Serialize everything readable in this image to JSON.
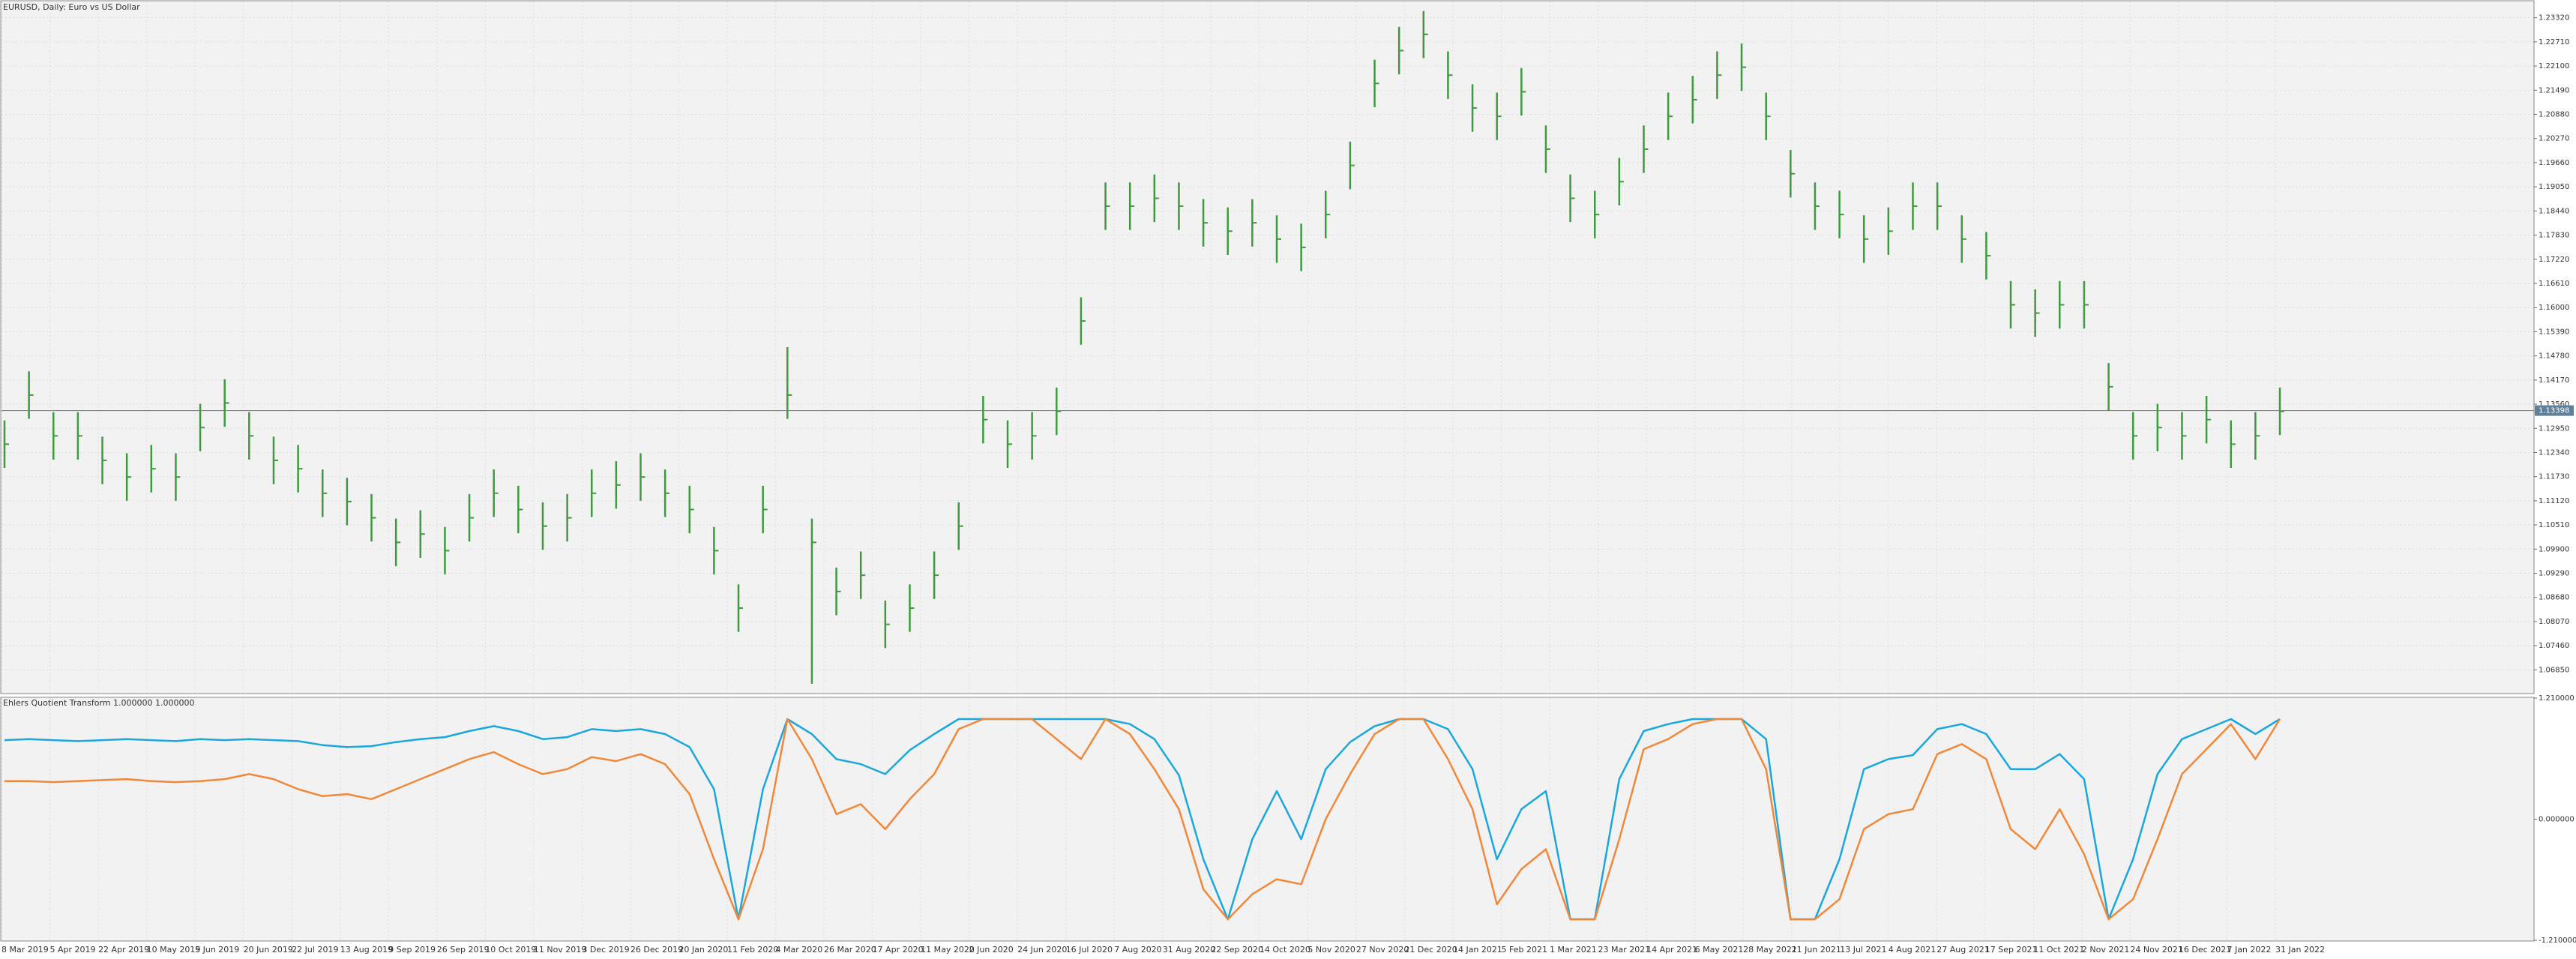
{
  "chart_data": [
    {
      "type": "hlc",
      "title": "EURUSD, Daily:  Euro vs US Dollar",
      "color": "#3f9a3f",
      "high": [
        1.1315,
        1.1439,
        1.1336,
        1.1336,
        1.1274,
        1.1232,
        1.1253,
        1.1232,
        1.1357,
        1.1419,
        1.1336,
        1.1274,
        1.1253,
        1.1191,
        1.117,
        1.1129,
        1.1067,
        1.1088,
        1.1046,
        1.1129,
        1.1191,
        1.115,
        1.1108,
        1.1129,
        1.1191,
        1.1212,
        1.1232,
        1.1191,
        1.115,
        1.1046,
        1.0901,
        1.115,
        1.15,
        1.1067,
        1.0943,
        1.0984,
        1.086,
        1.0901,
        1.0984,
        1.1108,
        1.1377,
        1.1315,
        1.1336,
        1.1398,
        1.1626,
        1.1916,
        1.1916,
        1.1936,
        1.1916,
        1.1874,
        1.1853,
        1.1874,
        1.1833,
        1.1812,
        1.1895,
        1.2019,
        1.2226,
        1.2309,
        1.2349,
        1.2247,
        1.2164,
        1.2143,
        1.2205,
        1.206,
        1.1936,
        1.1895,
        1.1978,
        1.206,
        1.2143,
        1.2185,
        1.2247,
        1.2267,
        1.2143,
        1.1998,
        1.1916,
        1.1895,
        1.1833,
        1.1853,
        1.1916,
        1.1916,
        1.1833,
        1.1791,
        1.1667,
        1.1646,
        1.1667,
        1.1667,
        1.146,
        1.1336,
        1.1357,
        1.1336,
        1.1377,
        1.1315,
        1.1336,
        1.1398
      ],
      "low": [
        1.1195,
        1.1319,
        1.1216,
        1.1216,
        1.1154,
        1.1112,
        1.1133,
        1.1112,
        1.1237,
        1.1299,
        1.1216,
        1.1154,
        1.1133,
        1.1071,
        1.105,
        1.1009,
        1.0947,
        1.0968,
        1.0926,
        1.1009,
        1.1071,
        1.103,
        1.0988,
        1.1009,
        1.1071,
        1.1092,
        1.1112,
        1.1071,
        1.103,
        1.0926,
        1.0781,
        1.103,
        1.1319,
        1.065,
        1.0823,
        1.0864,
        1.074,
        1.0781,
        1.0864,
        1.0988,
        1.1257,
        1.1195,
        1.1216,
        1.1278,
        1.1506,
        1.1796,
        1.1796,
        1.1816,
        1.1796,
        1.1754,
        1.1733,
        1.1754,
        1.1713,
        1.1692,
        1.1775,
        1.1899,
        1.2106,
        1.2189,
        1.223,
        1.2127,
        1.2044,
        1.2023,
        1.2085,
        1.194,
        1.1816,
        1.1775,
        1.1858,
        1.194,
        1.2023,
        1.2065,
        1.2127,
        1.2147,
        1.2023,
        1.1878,
        1.1796,
        1.1775,
        1.1713,
        1.1733,
        1.1796,
        1.1796,
        1.1713,
        1.1671,
        1.1547,
        1.1526,
        1.1547,
        1.1547,
        1.134,
        1.1216,
        1.1237,
        1.1216,
        1.1257,
        1.1195,
        1.1216,
        1.1278
      ],
      "close": [
        1.1255,
        1.1379,
        1.1276,
        1.1276,
        1.1214,
        1.1172,
        1.1193,
        1.1172,
        1.1297,
        1.1359,
        1.1276,
        1.1214,
        1.1193,
        1.1131,
        1.111,
        1.1069,
        1.1007,
        1.1028,
        1.0986,
        1.1069,
        1.1131,
        1.109,
        1.1048,
        1.1069,
        1.1131,
        1.1152,
        1.1172,
        1.1131,
        1.109,
        1.0986,
        1.0841,
        1.109,
        1.1379,
        1.1007,
        1.0883,
        1.0924,
        1.08,
        1.0841,
        1.0924,
        1.1048,
        1.1317,
        1.1255,
        1.1276,
        1.1338,
        1.1566,
        1.1856,
        1.1856,
        1.1876,
        1.1856,
        1.1814,
        1.1793,
        1.1814,
        1.1773,
        1.1752,
        1.1835,
        1.1959,
        1.2166,
        1.2249,
        1.229,
        1.2187,
        1.2104,
        1.2083,
        1.2145,
        1.2,
        1.1876,
        1.1835,
        1.1918,
        1.2,
        1.2083,
        1.2125,
        1.2187,
        1.2207,
        1.2083,
        1.1938,
        1.1856,
        1.1835,
        1.1773,
        1.1793,
        1.1856,
        1.1856,
        1.1773,
        1.1731,
        1.1607,
        1.1586,
        1.1607,
        1.1607,
        1.14,
        1.1276,
        1.1297,
        1.1276,
        1.1317,
        1.1255,
        1.1276,
        1.1338
      ],
      "current_price": 1.13398,
      "ylim": [
        1.0627,
        1.2373
      ],
      "yticks": [
        {
          "value": 1.2332,
          "label": "1.23320"
        },
        {
          "value": 1.2271,
          "label": "1.22710"
        },
        {
          "value": 1.221,
          "label": "1.22100"
        },
        {
          "value": 1.2149,
          "label": "1.21490"
        },
        {
          "value": 1.2088,
          "label": "1.20880"
        },
        {
          "value": 1.2027,
          "label": "1.20270"
        },
        {
          "value": 1.1966,
          "label": "1.19660"
        },
        {
          "value": 1.1905,
          "label": "1.19050"
        },
        {
          "value": 1.1844,
          "label": "1.18440"
        },
        {
          "value": 1.1783,
          "label": "1.17830"
        },
        {
          "value": 1.1722,
          "label": "1.17220"
        },
        {
          "value": 1.1661,
          "label": "1.16610"
        },
        {
          "value": 1.16,
          "label": "1.16000"
        },
        {
          "value": 1.1539,
          "label": "1.15390"
        },
        {
          "value": 1.1478,
          "label": "1.14780"
        },
        {
          "value": 1.1417,
          "label": "1.14170"
        },
        {
          "value": 1.1356,
          "label": "1.13560"
        },
        {
          "value": 1.1295,
          "label": "1.12950"
        },
        {
          "value": 1.1234,
          "label": "1.12340"
        },
        {
          "value": 1.1173,
          "label": "1.11730"
        },
        {
          "value": 1.1112,
          "label": "1.11120"
        },
        {
          "value": 1.1051,
          "label": "1.10510"
        },
        {
          "value": 1.099,
          "label": "1.09900"
        },
        {
          "value": 1.0929,
          "label": "1.09290"
        },
        {
          "value": 1.0868,
          "label": "1.08680"
        },
        {
          "value": 1.0807,
          "label": "1.08070"
        },
        {
          "value": 1.0746,
          "label": "1.07460"
        },
        {
          "value": 1.0685,
          "label": "1.06850"
        }
      ],
      "grid": true,
      "date_labels": [
        "8 Mar 2019",
        "5 Apr 2019",
        "22 Apr 2019",
        "10 May 2019",
        "5 Jun 2019",
        "20 Jun 2019",
        "22 Jul 2019",
        "13 Aug 2019",
        "9 Sep 2019",
        "26 Sep 2019",
        "10 Oct 2019",
        "11 Nov 2019",
        "3 Dec 2019",
        "26 Dec 2019",
        "20 Jan 2020",
        "11 Feb 2020",
        "4 Mar 2020",
        "26 Mar 2020",
        "17 Apr 2020",
        "11 May 2020",
        "2 Jun 2020",
        "24 Jun 2020",
        "16 Jul 2020",
        "7 Aug 2020",
        "31 Aug 2020",
        "22 Sep 2020",
        "14 Oct 2020",
        "5 Nov 2020",
        "27 Nov 2020",
        "21 Dec 2020",
        "14 Jan 2021",
        "5 Feb 2021",
        "1 Mar 2021",
        "23 Mar 2021",
        "14 Apr 2021",
        "6 May 2021",
        "28 May 2021",
        "21 Jun 2021",
        "13 Jul 2021",
        "4 Aug 2021",
        "27 Aug 2021",
        "17 Sep 2021",
        "11 Oct 2021",
        "2 Nov 2021",
        "24 Nov 2021",
        "16 Dec 2021",
        "7 Jan 2022",
        "31 Jan 2022"
      ]
    },
    {
      "type": "line",
      "title": "Ehlers Quotient Transform 1.000000 1.000000",
      "series": [
        {
          "color": "#1aa7dc",
          "values": [
            0.79,
            0.8,
            0.79,
            0.78,
            0.79,
            0.8,
            0.79,
            0.78,
            0.8,
            0.79,
            0.8,
            0.79,
            0.78,
            0.74,
            0.72,
            0.73,
            0.77,
            0.8,
            0.82,
            0.88,
            0.93,
            0.88,
            0.8,
            0.82,
            0.9,
            0.88,
            0.9,
            0.85,
            0.72,
            0.3,
            -1,
            0.3,
            1,
            0.85,
            0.6,
            0.55,
            0.45,
            0.69,
            0.85,
            1,
            1,
            1,
            1,
            1,
            1,
            1,
            0.95,
            0.8,
            0.44,
            -0.4,
            -1,
            -0.2,
            0.28,
            -0.2,
            0.5,
            0.77,
            0.93,
            1,
            1,
            0.9,
            0.5,
            -0.4,
            0.1,
            0.28,
            -1,
            -1,
            0.4,
            0.88,
            0.95,
            1,
            1,
            1,
            0.8,
            -1,
            -1,
            -0.4,
            0.5,
            0.6,
            0.64,
            0.9,
            0.95,
            0.85,
            0.5,
            0.5,
            0.65,
            0.4,
            -1,
            -0.4,
            0.45,
            0.8,
            0.9,
            1,
            0.85,
            1
          ]
        },
        {
          "color": "#f0883a",
          "values": [
            0.38,
            0.38,
            0.37,
            0.38,
            0.39,
            0.4,
            0.38,
            0.37,
            0.38,
            0.4,
            0.45,
            0.4,
            0.3,
            0.23,
            0.25,
            0.2,
            0.3,
            0.4,
            0.5,
            0.6,
            0.67,
            0.55,
            0.45,
            0.5,
            0.62,
            0.58,
            0.65,
            0.55,
            0.25,
            -0.4,
            -1,
            -0.3,
            1,
            0.6,
            0.05,
            0.15,
            -0.1,
            0.2,
            0.45,
            0.9,
            1,
            1,
            1,
            0.8,
            0.6,
            1,
            0.85,
            0.5,
            0.1,
            -0.7,
            -1,
            -0.75,
            -0.6,
            -0.65,
            0.0,
            0.45,
            0.85,
            1,
            1,
            0.6,
            0.1,
            -0.85,
            -0.5,
            -0.3,
            -1,
            -1,
            -0.2,
            0.7,
            0.8,
            0.95,
            1,
            1,
            0.5,
            -1,
            -1,
            -0.8,
            -0.1,
            0.05,
            0.1,
            0.65,
            0.75,
            0.6,
            -0.1,
            -0.3,
            0.1,
            -0.35,
            -1,
            -0.8,
            -0.2,
            0.45,
            0.7,
            0.95,
            0.6,
            1
          ]
        }
      ],
      "ylim": [
        -1.21,
        1.21
      ],
      "yticks": [
        {
          "value": 1.21,
          "label": "1.210000"
        },
        {
          "value": 0,
          "label": "0.000000"
        },
        {
          "value": -1.21,
          "label": "-1.210000"
        }
      ]
    }
  ]
}
